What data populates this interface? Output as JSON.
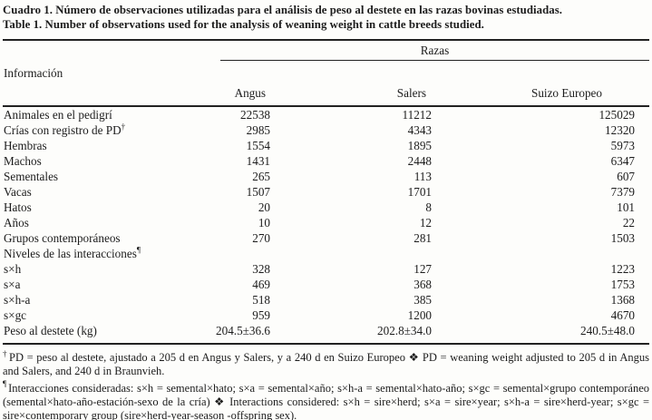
{
  "title": {
    "line_es": "Cuadro 1. Número de observaciones utilizadas para el análisis de peso al destete en las razas bovinas estudiadas.",
    "line_en": "Table 1. Number of observations used for the analysis of weaning weight in cattle breeds studied."
  },
  "table": {
    "info_header": "Información",
    "group_header": "Razas",
    "columns": [
      "Angus",
      "Salers",
      "Suizo Europeo"
    ],
    "rows": [
      {
        "label": "Animales en el pedigrí",
        "values": [
          "22538",
          "11212",
          "125029"
        ]
      },
      {
        "label": "Crías con registro de PD",
        "label_sup": "†",
        "values": [
          "2985",
          "4343",
          "12320"
        ]
      },
      {
        "label": "Hembras",
        "values": [
          "1554",
          "1895",
          "5973"
        ]
      },
      {
        "label": "Machos",
        "values": [
          "1431",
          "2448",
          "6347"
        ]
      },
      {
        "label": "Sementales",
        "values": [
          "265",
          "113",
          "607"
        ]
      },
      {
        "label": "Vacas",
        "values": [
          "1507",
          "1701",
          "7379"
        ]
      },
      {
        "label": "Hatos",
        "values": [
          "20",
          "8",
          "101"
        ]
      },
      {
        "label": "Años",
        "values": [
          "10",
          "12",
          "22"
        ]
      },
      {
        "label": "Grupos contemporáneos",
        "values": [
          "270",
          "281",
          "1503"
        ]
      },
      {
        "label": "Niveles de las interacciones",
        "label_sup": "¶",
        "values": [
          "",
          "",
          ""
        ]
      },
      {
        "label": "s×h",
        "values": [
          "328",
          "127",
          "1223"
        ]
      },
      {
        "label": "s×a",
        "values": [
          "469",
          "368",
          "1753"
        ]
      },
      {
        "label": "s×h-a",
        "values": [
          "518",
          "385",
          "1368"
        ]
      },
      {
        "label": "s×gc",
        "values": [
          "959",
          "1200",
          "4670"
        ]
      },
      {
        "label": "Peso al destete (kg)",
        "values": [
          "204.5±36.6",
          "202.8±34.0",
          "240.5±48.0"
        ]
      }
    ]
  },
  "footnotes": [
    {
      "marker": "†",
      "text": "PD = peso al destete, ajustado a 205 d en Angus y Salers, y a 240 d en Suizo Europeo ❖ PD = weaning weight adjusted to 205 d in Angus and Salers, and 240 d in Braunvieh."
    },
    {
      "marker": "¶",
      "text": "Interacciones consideradas: s×h = semental×hato; s×a = semental×año; s×h-a = semental×hato-año; s×gc = semental×grupo contemporáneo (semental×hato-año-estación-sexo de la cría) ❖ Interactions considered: s×h = sire×herd; s×a = sire×year; s×h-a = sire×herd-year; s×gc = sire×contemporary group (sire×herd-year-season -offspring sex)."
    }
  ]
}
